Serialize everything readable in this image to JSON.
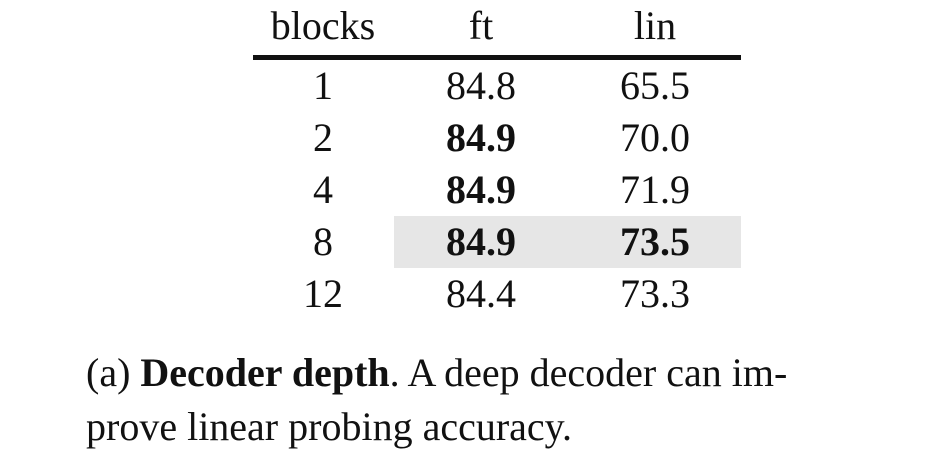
{
  "table": {
    "headers": [
      "blocks",
      "ft",
      "lin"
    ],
    "rows": [
      {
        "blocks": "1",
        "ft": "84.8",
        "lin": "65.5",
        "ft_bold": false,
        "lin_bold": false,
        "highlight": false
      },
      {
        "blocks": "2",
        "ft": "84.9",
        "lin": "70.0",
        "ft_bold": true,
        "lin_bold": false,
        "highlight": false
      },
      {
        "blocks": "4",
        "ft": "84.9",
        "lin": "71.9",
        "ft_bold": true,
        "lin_bold": false,
        "highlight": false
      },
      {
        "blocks": "8",
        "ft": "84.9",
        "lin": "73.5",
        "ft_bold": true,
        "lin_bold": true,
        "highlight": true
      },
      {
        "blocks": "12",
        "ft": "84.4",
        "lin": "73.3",
        "ft_bold": false,
        "lin_bold": false,
        "highlight": false
      }
    ],
    "highlight_color": "#e6e6e6"
  },
  "caption": {
    "prefix": "(a)",
    "title": "Decoder depth",
    "line1_rest": ". A deep decoder can im-",
    "line2": "prove linear probing accuracy."
  }
}
